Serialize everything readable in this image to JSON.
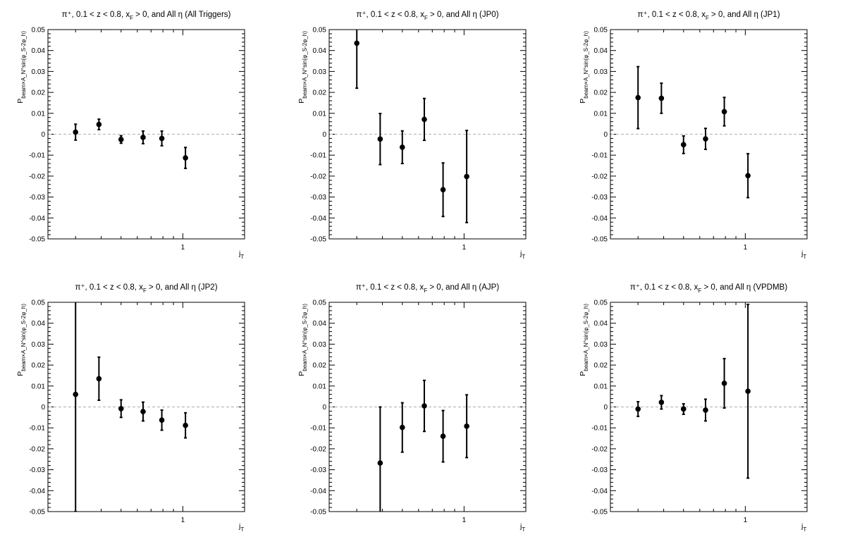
{
  "chart_data": [
    {
      "type": "scatter",
      "title": "π⁺, 0.1 < z < 0.8, x_F > 0, and All η (All Triggers)",
      "xlabel": "j_T",
      "ylabel": "P_beam×A_N^sin(φ_S-2φ_h)",
      "xscale": "log",
      "xlim": [
        0.22,
        2.0
      ],
      "ylim": [
        -0.05,
        0.05
      ],
      "xticks": [
        1
      ],
      "yticks": [
        -0.05,
        -0.04,
        -0.03,
        -0.02,
        -0.01,
        0,
        0.01,
        0.02,
        0.03,
        0.04,
        0.05
      ],
      "ytick_labels": [
        "-0.05",
        "-0.04",
        "-0.03",
        "-0.02",
        "-0.01",
        "0",
        "0.01",
        "0.02",
        "0.03",
        "0.04",
        "0.05"
      ],
      "xtick_labels": [
        "1"
      ],
      "zero_line": true,
      "points": [
        {
          "x": 0.3,
          "y": 0.001,
          "err": 0.0038
        },
        {
          "x": 0.39,
          "y": 0.0047,
          "err": 0.0025
        },
        {
          "x": 0.5,
          "y": -0.0025,
          "err": 0.0018
        },
        {
          "x": 0.64,
          "y": -0.0015,
          "err": 0.003
        },
        {
          "x": 0.79,
          "y": -0.002,
          "err": 0.0035
        },
        {
          "x": 1.03,
          "y": -0.0113,
          "err": 0.005
        }
      ]
    },
    {
      "type": "scatter",
      "title": "π⁺, 0.1 < z < 0.8, x_F > 0, and All η (JP0)",
      "xlabel": "j_T",
      "ylabel": "P_beam×A_N^sin(φ_S-2φ_h)",
      "xscale": "log",
      "xlim": [
        0.22,
        2.0
      ],
      "ylim": [
        -0.05,
        0.05
      ],
      "xticks": [
        1
      ],
      "yticks": [
        -0.05,
        -0.04,
        -0.03,
        -0.02,
        -0.01,
        0,
        0.01,
        0.02,
        0.03,
        0.04,
        0.05
      ],
      "ytick_labels": [
        "-0.05",
        "-0.04",
        "-0.03",
        "-0.02",
        "-0.01",
        "0",
        "0.01",
        "0.02",
        "0.03",
        "0.04",
        "0.05"
      ],
      "xtick_labels": [
        "1"
      ],
      "zero_line": true,
      "points": [
        {
          "x": 0.3,
          "y": 0.0435,
          "err": 0.0215
        },
        {
          "x": 0.39,
          "y": -0.0023,
          "err": 0.0122
        },
        {
          "x": 0.5,
          "y": -0.0062,
          "err": 0.0078
        },
        {
          "x": 0.64,
          "y": 0.0071,
          "err": 0.01
        },
        {
          "x": 0.79,
          "y": -0.0265,
          "err": 0.0128
        },
        {
          "x": 1.03,
          "y": -0.0202,
          "err": 0.022
        }
      ]
    },
    {
      "type": "scatter",
      "title": "π⁺, 0.1 < z < 0.8, x_F > 0, and All η (JP1)",
      "xlabel": "j_T",
      "ylabel": "P_beam×A_N^sin(φ_S-2φ_h)",
      "xscale": "log",
      "xlim": [
        0.22,
        2.0
      ],
      "ylim": [
        -0.05,
        0.05
      ],
      "xticks": [
        1
      ],
      "yticks": [
        -0.05,
        -0.04,
        -0.03,
        -0.02,
        -0.01,
        0,
        0.01,
        0.02,
        0.03,
        0.04,
        0.05
      ],
      "ytick_labels": [
        "-0.05",
        "-0.04",
        "-0.03",
        "-0.02",
        "-0.01",
        "0",
        "0.01",
        "0.02",
        "0.03",
        "0.04",
        "0.05"
      ],
      "xtick_labels": [
        "1"
      ],
      "zero_line": true,
      "points": [
        {
          "x": 0.3,
          "y": 0.0175,
          "err": 0.0148
        },
        {
          "x": 0.39,
          "y": 0.0172,
          "err": 0.0072
        },
        {
          "x": 0.5,
          "y": -0.005,
          "err": 0.0042
        },
        {
          "x": 0.64,
          "y": -0.0022,
          "err": 0.005
        },
        {
          "x": 0.79,
          "y": 0.0108,
          "err": 0.0068
        },
        {
          "x": 1.03,
          "y": -0.0198,
          "err": 0.0105
        }
      ]
    },
    {
      "type": "scatter",
      "title": "π⁺, 0.1 < z < 0.8, x_F > 0, and All η (JP2)",
      "xlabel": "j_T",
      "ylabel": "P_beam×A_N^sin(φ_S-2φ_h)",
      "xscale": "log",
      "xlim": [
        0.22,
        2.0
      ],
      "ylim": [
        -0.05,
        0.05
      ],
      "xticks": [
        1
      ],
      "yticks": [
        -0.05,
        -0.04,
        -0.03,
        -0.02,
        -0.01,
        0,
        0.01,
        0.02,
        0.03,
        0.04,
        0.05
      ],
      "ytick_labels": [
        "-0.05",
        "-0.04",
        "-0.03",
        "-0.02",
        "-0.01",
        "0",
        "0.01",
        "0.02",
        "0.03",
        "0.04",
        "0.05"
      ],
      "xtick_labels": [
        "1"
      ],
      "zero_line": true,
      "points": [
        {
          "x": 0.3,
          "y": 0.006,
          "err": 0.056
        },
        {
          "x": 0.39,
          "y": 0.0135,
          "err": 0.0103
        },
        {
          "x": 0.5,
          "y": -0.0008,
          "err": 0.0042
        },
        {
          "x": 0.64,
          "y": -0.0022,
          "err": 0.0045
        },
        {
          "x": 0.79,
          "y": -0.0063,
          "err": 0.0048
        },
        {
          "x": 1.03,
          "y": -0.0088,
          "err": 0.006
        }
      ]
    },
    {
      "type": "scatter",
      "title": "π⁺, 0.1 < z < 0.8, x_F > 0, and All η (AJP)",
      "xlabel": "j_T",
      "ylabel": "P_beam×A_N^sin(φ_S-2φ_h)",
      "xscale": "log",
      "xlim": [
        0.22,
        2.0
      ],
      "ylim": [
        -0.05,
        0.05
      ],
      "xticks": [
        1
      ],
      "yticks": [
        -0.05,
        -0.04,
        -0.03,
        -0.02,
        -0.01,
        0,
        0.01,
        0.02,
        0.03,
        0.04,
        0.05
      ],
      "ytick_labels": [
        "-0.05",
        "-0.04",
        "-0.03",
        "-0.02",
        "-0.01",
        "0",
        "0.01",
        "0.02",
        "0.03",
        "0.04",
        "0.05"
      ],
      "xtick_labels": [
        "1"
      ],
      "zero_line": true,
      "points": [
        {
          "x": 0.39,
          "y": -0.0268,
          "err": 0.0268
        },
        {
          "x": 0.5,
          "y": -0.0098,
          "err": 0.0118
        },
        {
          "x": 0.64,
          "y": 0.0005,
          "err": 0.0122
        },
        {
          "x": 0.79,
          "y": -0.014,
          "err": 0.0123
        },
        {
          "x": 1.03,
          "y": -0.0092,
          "err": 0.015
        }
      ]
    },
    {
      "type": "scatter",
      "title": "π⁺, 0.1 < z < 0.8, x_F > 0, and All η (VPDMB)",
      "xlabel": "j_T",
      "ylabel": "P_beam×A_N^sin(φ_S-2φ_h)",
      "xscale": "log",
      "xlim": [
        0.22,
        2.0
      ],
      "ylim": [
        -0.05,
        0.05
      ],
      "xticks": [
        1
      ],
      "yticks": [
        -0.05,
        -0.04,
        -0.03,
        -0.02,
        -0.01,
        0,
        0.01,
        0.02,
        0.03,
        0.04,
        0.05
      ],
      "ytick_labels": [
        "-0.05",
        "-0.04",
        "-0.03",
        "-0.02",
        "-0.01",
        "0",
        "0.01",
        "0.02",
        "0.03",
        "0.04",
        "0.05"
      ],
      "xtick_labels": [
        "1"
      ],
      "zero_line": true,
      "points": [
        {
          "x": 0.3,
          "y": -0.001,
          "err": 0.0035
        },
        {
          "x": 0.39,
          "y": 0.0022,
          "err": 0.0032
        },
        {
          "x": 0.5,
          "y": -0.001,
          "err": 0.0025
        },
        {
          "x": 0.64,
          "y": -0.0015,
          "err": 0.0052
        },
        {
          "x": 0.79,
          "y": 0.0113,
          "err": 0.0118
        },
        {
          "x": 1.03,
          "y": 0.0075,
          "err": 0.0415
        }
      ]
    }
  ]
}
